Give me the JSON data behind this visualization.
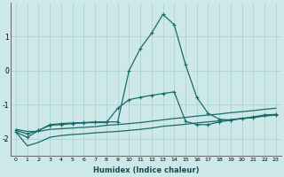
{
  "xlabel": "Humidex (Indice chaleur)",
  "bg_color": "#cce8e8",
  "grid_color": "#aacfcf",
  "line_color": "#1a6b6b",
  "xlim": [
    -0.5,
    23.5
  ],
  "ylim": [
    -2.5,
    2.0
  ],
  "yticks": [
    -2,
    -1,
    0,
    1
  ],
  "x": [
    0,
    1,
    2,
    3,
    4,
    5,
    6,
    7,
    8,
    9,
    10,
    11,
    12,
    13,
    14,
    15,
    16,
    17,
    18,
    19,
    20,
    21,
    22,
    23
  ],
  "line1": [
    -1.8,
    -1.95,
    -1.75,
    -1.58,
    -1.55,
    -1.53,
    -1.52,
    -1.5,
    -1.5,
    -1.5,
    0.0,
    0.65,
    1.1,
    1.65,
    1.35,
    0.18,
    -0.78,
    -1.25,
    -1.42,
    -1.45,
    -1.4,
    -1.38,
    -1.3,
    -1.3
  ],
  "line2": [
    -1.75,
    -1.85,
    -1.75,
    -1.6,
    -1.58,
    -1.55,
    -1.53,
    -1.52,
    -1.52,
    -1.1,
    -0.85,
    -0.78,
    -0.72,
    -0.67,
    -0.62,
    -1.48,
    -1.58,
    -1.58,
    -1.5,
    -1.45,
    -1.4,
    -1.35,
    -1.3,
    -1.28
  ],
  "line3": [
    -1.72,
    -1.78,
    -1.78,
    -1.72,
    -1.7,
    -1.68,
    -1.66,
    -1.64,
    -1.6,
    -1.58,
    -1.55,
    -1.52,
    -1.48,
    -1.44,
    -1.4,
    -1.37,
    -1.33,
    -1.3,
    -1.27,
    -1.23,
    -1.2,
    -1.17,
    -1.13,
    -1.1
  ],
  "line4": [
    -1.8,
    -2.2,
    -2.1,
    -1.95,
    -1.9,
    -1.87,
    -1.85,
    -1.82,
    -1.8,
    -1.78,
    -1.75,
    -1.72,
    -1.68,
    -1.63,
    -1.6,
    -1.57,
    -1.53,
    -1.5,
    -1.47,
    -1.43,
    -1.4,
    -1.37,
    -1.33,
    -1.3
  ]
}
